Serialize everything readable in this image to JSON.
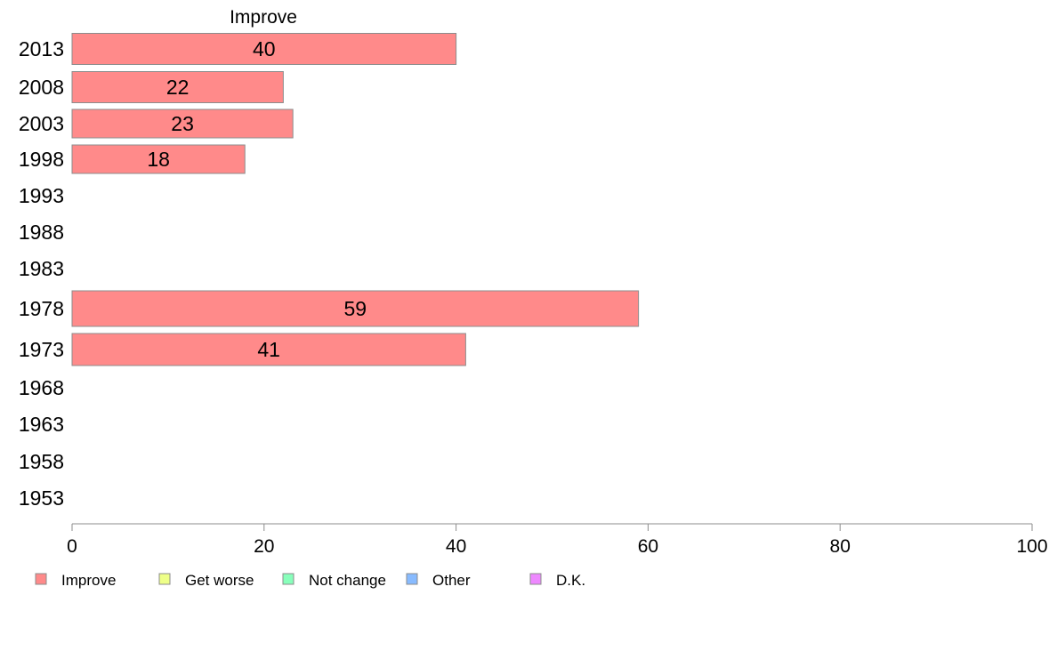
{
  "chart_data": {
    "type": "bar",
    "orientation": "horizontal",
    "title": "Improve",
    "xlabel": "",
    "ylabel": "",
    "xlim": [
      0,
      100
    ],
    "xticks": [
      0,
      20,
      40,
      60,
      80,
      100
    ],
    "categories": [
      "2013",
      "2008",
      "2003",
      "1998",
      "1993",
      "1988",
      "1983",
      "1978",
      "1973",
      "1968",
      "1963",
      "1958",
      "1953"
    ],
    "series": [
      {
        "name": "Improve",
        "color": "#ff8a8a",
        "values": [
          40,
          22,
          23,
          18,
          null,
          null,
          null,
          59,
          41,
          null,
          null,
          null,
          null
        ],
        "labels": [
          "40",
          "22",
          "23",
          "18",
          "",
          "",
          "",
          "59",
          "41",
          "",
          "",
          "",
          ""
        ]
      }
    ],
    "grid": false,
    "legend_position": "bottom-left",
    "legend": [
      {
        "label": "Improve",
        "color": "#ff8a8a"
      },
      {
        "label": "Get worse",
        "color": "#eeff88"
      },
      {
        "label": "Not change",
        "color": "#88ffbb"
      },
      {
        "label": "Other",
        "color": "#88bbff"
      },
      {
        "label": "D.K.",
        "color": "#ee88ff"
      }
    ]
  }
}
